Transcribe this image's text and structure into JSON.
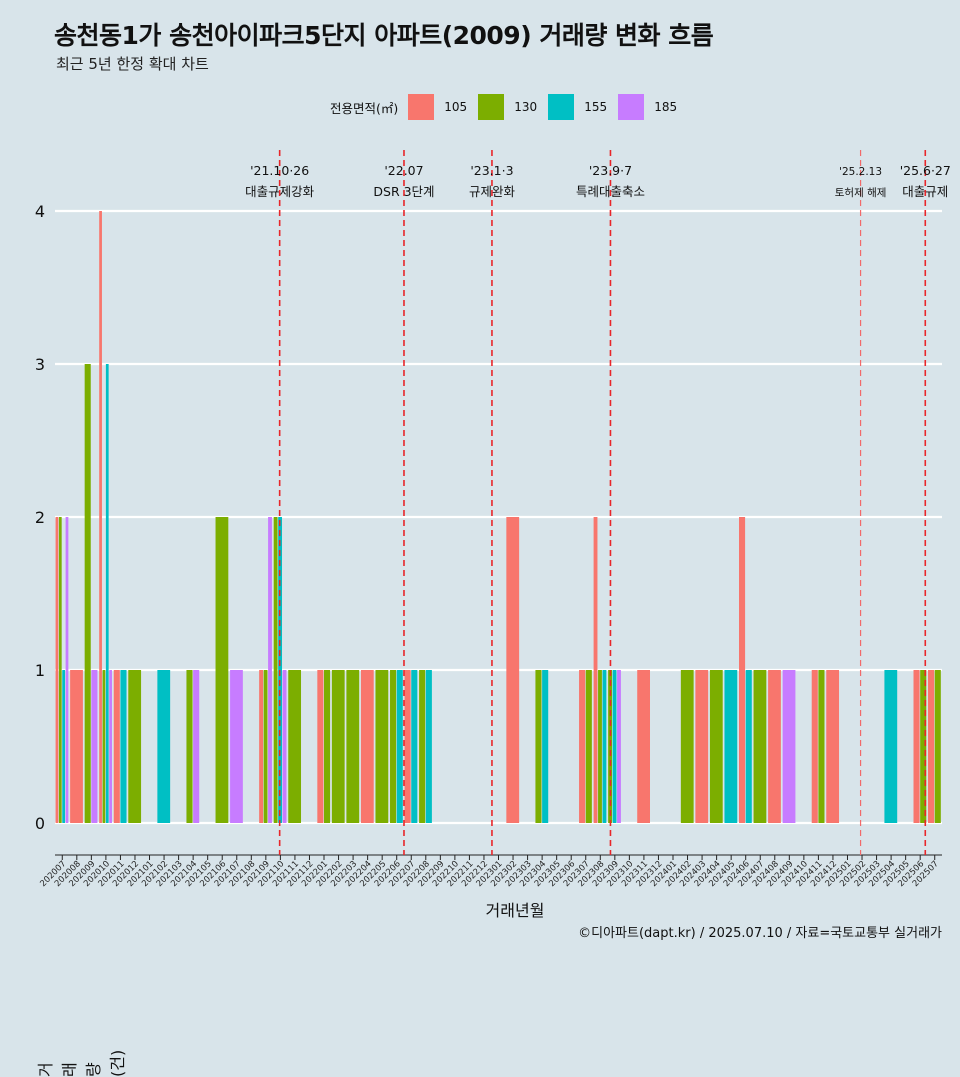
{
  "title": "송천동1가 송천아이파크5단지 아파트(2009) 거래량 변화 흐름",
  "subtitle": "최근 5년 한정 확대 차트",
  "caption": "©디아파트(dapt.kr) / 2025.07.10 / 자료=국토교통부 실거래가",
  "legend": {
    "title": "전용면적(㎡)",
    "items": [
      {
        "label": "105",
        "color": "#f8766d"
      },
      {
        "label": "130",
        "color": "#7cae00"
      },
      {
        "label": "155",
        "color": "#00bfc4"
      },
      {
        "label": "185",
        "color": "#c77cff"
      }
    ]
  },
  "chart_data": {
    "type": "bar",
    "xlabel": "거래년월",
    "ylabel": "거래량(건)",
    "ylim": [
      0,
      4
    ],
    "yticks": [
      0,
      1,
      2,
      3,
      4
    ],
    "grid": true,
    "legend_position": "top",
    "categories": [
      "202007",
      "202008",
      "202009",
      "202010",
      "202011",
      "202012",
      "202101",
      "202102",
      "202103",
      "202104",
      "202105",
      "202106",
      "202107",
      "202108",
      "202109",
      "202110",
      "202111",
      "202112",
      "202201",
      "202202",
      "202203",
      "202204",
      "202205",
      "202206",
      "202207",
      "202208",
      "202209",
      "202210",
      "202211",
      "202212",
      "202301",
      "202302",
      "202303",
      "202304",
      "202305",
      "202306",
      "202307",
      "202308",
      "202309",
      "202310",
      "202311",
      "202312",
      "202401",
      "202402",
      "202403",
      "202404",
      "202405",
      "202406",
      "202407",
      "202408",
      "202409",
      "202410",
      "202411",
      "202412",
      "202501",
      "202502",
      "202503",
      "202504",
      "202505",
      "202506",
      "202507"
    ],
    "bars": [
      {
        "month": "202007",
        "size": "105",
        "value": 2
      },
      {
        "month": "202007",
        "size": "130",
        "value": 2
      },
      {
        "month": "202007",
        "size": "155",
        "value": 1
      },
      {
        "month": "202007",
        "size": "185",
        "value": 2
      },
      {
        "month": "202008",
        "size": "105",
        "value": 1
      },
      {
        "month": "202009",
        "size": "130",
        "value": 3
      },
      {
        "month": "202009",
        "size": "185",
        "value": 1
      },
      {
        "month": "202010",
        "size": "105",
        "value": 4
      },
      {
        "month": "202010",
        "size": "130",
        "value": 1
      },
      {
        "month": "202010",
        "size": "155",
        "value": 3
      },
      {
        "month": "202010",
        "size": "185",
        "value": 1
      },
      {
        "month": "202011",
        "size": "105",
        "value": 1
      },
      {
        "month": "202011",
        "size": "155",
        "value": 1
      },
      {
        "month": "202012",
        "size": "130",
        "value": 1
      },
      {
        "month": "202102",
        "size": "155",
        "value": 1
      },
      {
        "month": "202104",
        "size": "130",
        "value": 1
      },
      {
        "month": "202104",
        "size": "185",
        "value": 1
      },
      {
        "month": "202106",
        "size": "130",
        "value": 2
      },
      {
        "month": "202107",
        "size": "185",
        "value": 1
      },
      {
        "month": "202109",
        "size": "105",
        "value": 1
      },
      {
        "month": "202109",
        "size": "130",
        "value": 1
      },
      {
        "month": "202109",
        "size": "185",
        "value": 2
      },
      {
        "month": "202110",
        "size": "130",
        "value": 2
      },
      {
        "month": "202110",
        "size": "155",
        "value": 2
      },
      {
        "month": "202110",
        "size": "185",
        "value": 1
      },
      {
        "month": "202111",
        "size": "130",
        "value": 1
      },
      {
        "month": "202201",
        "size": "105",
        "value": 1
      },
      {
        "month": "202201",
        "size": "130",
        "value": 1
      },
      {
        "month": "202202",
        "size": "130",
        "value": 1
      },
      {
        "month": "202203",
        "size": "130",
        "value": 1
      },
      {
        "month": "202204",
        "size": "105",
        "value": 1
      },
      {
        "month": "202205",
        "size": "130",
        "value": 1
      },
      {
        "month": "202206",
        "size": "130",
        "value": 1
      },
      {
        "month": "202206",
        "size": "155",
        "value": 1
      },
      {
        "month": "202207",
        "size": "105",
        "value": 1
      },
      {
        "month": "202207",
        "size": "155",
        "value": 1
      },
      {
        "month": "202208",
        "size": "130",
        "value": 1
      },
      {
        "month": "202208",
        "size": "155",
        "value": 1
      },
      {
        "month": "202302",
        "size": "105",
        "value": 2
      },
      {
        "month": "202304",
        "size": "130",
        "value": 1
      },
      {
        "month": "202304",
        "size": "155",
        "value": 1
      },
      {
        "month": "202307",
        "size": "105",
        "value": 1
      },
      {
        "month": "202307",
        "size": "130",
        "value": 1
      },
      {
        "month": "202308",
        "size": "105",
        "value": 2
      },
      {
        "month": "202308",
        "size": "130",
        "value": 1
      },
      {
        "month": "202308",
        "size": "155",
        "value": 1
      },
      {
        "month": "202309",
        "size": "130",
        "value": 1
      },
      {
        "month": "202309",
        "size": "155",
        "value": 1
      },
      {
        "month": "202309",
        "size": "185",
        "value": 1
      },
      {
        "month": "202311",
        "size": "105",
        "value": 1
      },
      {
        "month": "202402",
        "size": "130",
        "value": 1
      },
      {
        "month": "202403",
        "size": "105",
        "value": 1
      },
      {
        "month": "202404",
        "size": "130",
        "value": 1
      },
      {
        "month": "202405",
        "size": "155",
        "value": 1
      },
      {
        "month": "202406",
        "size": "105",
        "value": 2
      },
      {
        "month": "202406",
        "size": "155",
        "value": 1
      },
      {
        "month": "202407",
        "size": "130",
        "value": 1
      },
      {
        "month": "202408",
        "size": "105",
        "value": 1
      },
      {
        "month": "202409",
        "size": "185",
        "value": 1
      },
      {
        "month": "202411",
        "size": "105",
        "value": 1
      },
      {
        "month": "202411",
        "size": "130",
        "value": 1
      },
      {
        "month": "202412",
        "size": "105",
        "value": 1
      },
      {
        "month": "202504",
        "size": "155",
        "value": 1
      },
      {
        "month": "202506",
        "size": "105",
        "value": 1
      },
      {
        "month": "202506",
        "size": "130",
        "value": 1
      },
      {
        "month": "202507",
        "size": "105",
        "value": 1
      },
      {
        "month": "202507",
        "size": "130",
        "value": 1
      }
    ],
    "annotations": [
      {
        "month": "202110",
        "offset": 0.45,
        "date": "'21.10·26",
        "label": "대출규제강화",
        "line_color": "#e8262a",
        "small": false
      },
      {
        "month": "202207",
        "offset": 0.0,
        "date": "'22.07",
        "label": "DSR 3단계",
        "line_color": "#e8262a",
        "small": false
      },
      {
        "month": "202301",
        "offset": 0.05,
        "date": "'23.1·3",
        "label": "규제완화",
        "line_color": "#e8262a",
        "small": false
      },
      {
        "month": "202309",
        "offset": 0.2,
        "date": "'23.9·7",
        "label": "특례대출축소",
        "line_color": "#e8262a",
        "small": false
      },
      {
        "month": "202502",
        "offset": 0.4,
        "date": "'25.2.13",
        "label": "토허제 해제",
        "line_color": "#f26a6a",
        "small": true
      },
      {
        "month": "202506",
        "offset": 0.85,
        "date": "'25.6·27",
        "label": "대출규제",
        "line_color": "#e8262a",
        "small": false
      }
    ]
  }
}
